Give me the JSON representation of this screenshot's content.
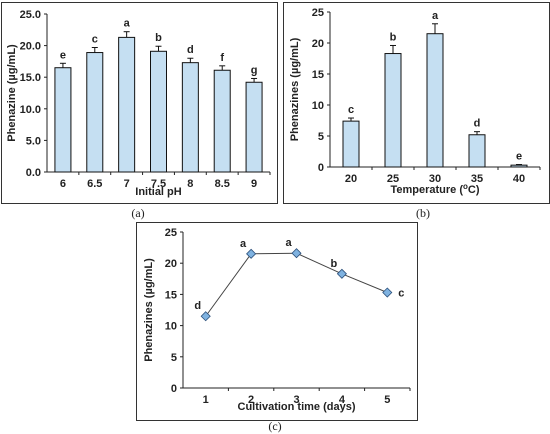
{
  "chart_data": [
    {
      "id": "a",
      "type": "bar",
      "caption": "(a)",
      "categories": [
        "6",
        "6.5",
        "7",
        "7.5",
        "8",
        "8.5",
        "9"
      ],
      "values": [
        16.5,
        18.9,
        21.3,
        19.1,
        17.3,
        16.1,
        14.2
      ],
      "errors": [
        0.7,
        0.8,
        0.9,
        0.8,
        0.7,
        0.7,
        0.6
      ],
      "letters": [
        "e",
        "c",
        "a",
        "b",
        "d",
        "f",
        "g"
      ],
      "xlabel": "Initial pH",
      "ylabel": "Phenazine (µg/mL)",
      "ylim": [
        0,
        25
      ],
      "yticks": [
        "0.0",
        "5.0",
        "10.0",
        "15.0",
        "20.0",
        "25.0"
      ],
      "bar_color": "#c5dff2",
      "grid": false
    },
    {
      "id": "b",
      "type": "bar",
      "caption": "(b)",
      "categories": [
        "20",
        "25",
        "30",
        "35",
        "40"
      ],
      "values": [
        7.4,
        18.3,
        21.5,
        5.2,
        0.3
      ],
      "errors": [
        0.5,
        1.3,
        1.6,
        0.5,
        0.1
      ],
      "letters": [
        "c",
        "b",
        "a",
        "d",
        "e"
      ],
      "xlabel_prefix": "Temperature (",
      "xlabel_sup": "o",
      "xlabel_suffix": "C)",
      "ylabel": "Phenazines (µg/mL)",
      "ylim": [
        0,
        25
      ],
      "yticks": [
        "0",
        "5",
        "10",
        "15",
        "20",
        "25"
      ],
      "bar_color": "#c5dff2",
      "grid": false
    },
    {
      "id": "c",
      "type": "line",
      "caption": "(c)",
      "x": [
        "1",
        "2",
        "3",
        "4",
        "5"
      ],
      "values": [
        11.5,
        21.5,
        21.6,
        18.3,
        15.3
      ],
      "letters": [
        "d",
        "a",
        "a",
        "b",
        "c"
      ],
      "xlabel": "Cultivation time (days)",
      "ylabel": "Phenazines (µg/mL)",
      "ylim": [
        0,
        25
      ],
      "yticks": [
        "0",
        "5",
        "10",
        "15",
        "20",
        "25"
      ],
      "marker_color": "#7fb2e0",
      "line_color": "#444444",
      "grid": false
    }
  ]
}
